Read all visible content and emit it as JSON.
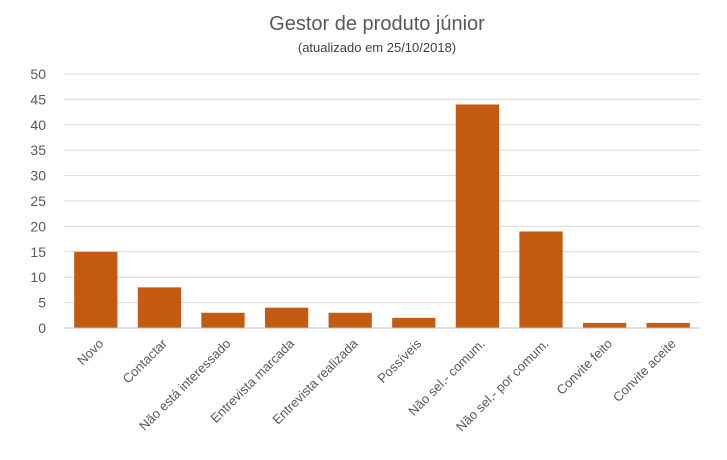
{
  "chart_data": {
    "type": "bar",
    "title": "Gestor de produto júnior",
    "subtitle": "(atualizado em 25/10/2018)",
    "categories": [
      "Novo",
      "Contactar",
      "Não está interessado",
      "Entrevista marcada",
      "Entrevista realizada",
      "Possíveis",
      "Não sel.- comum.",
      "Não sel.- por comum.",
      "Convite feito",
      "Convite aceite"
    ],
    "values": [
      15,
      8,
      3,
      4,
      3,
      2,
      44,
      19,
      1,
      1
    ],
    "ylim": [
      0,
      50
    ],
    "yticks": [
      0,
      5,
      10,
      15,
      20,
      25,
      30,
      35,
      40,
      45,
      50
    ],
    "grid": true,
    "legend": "none",
    "bar_color": "#c55a11"
  }
}
